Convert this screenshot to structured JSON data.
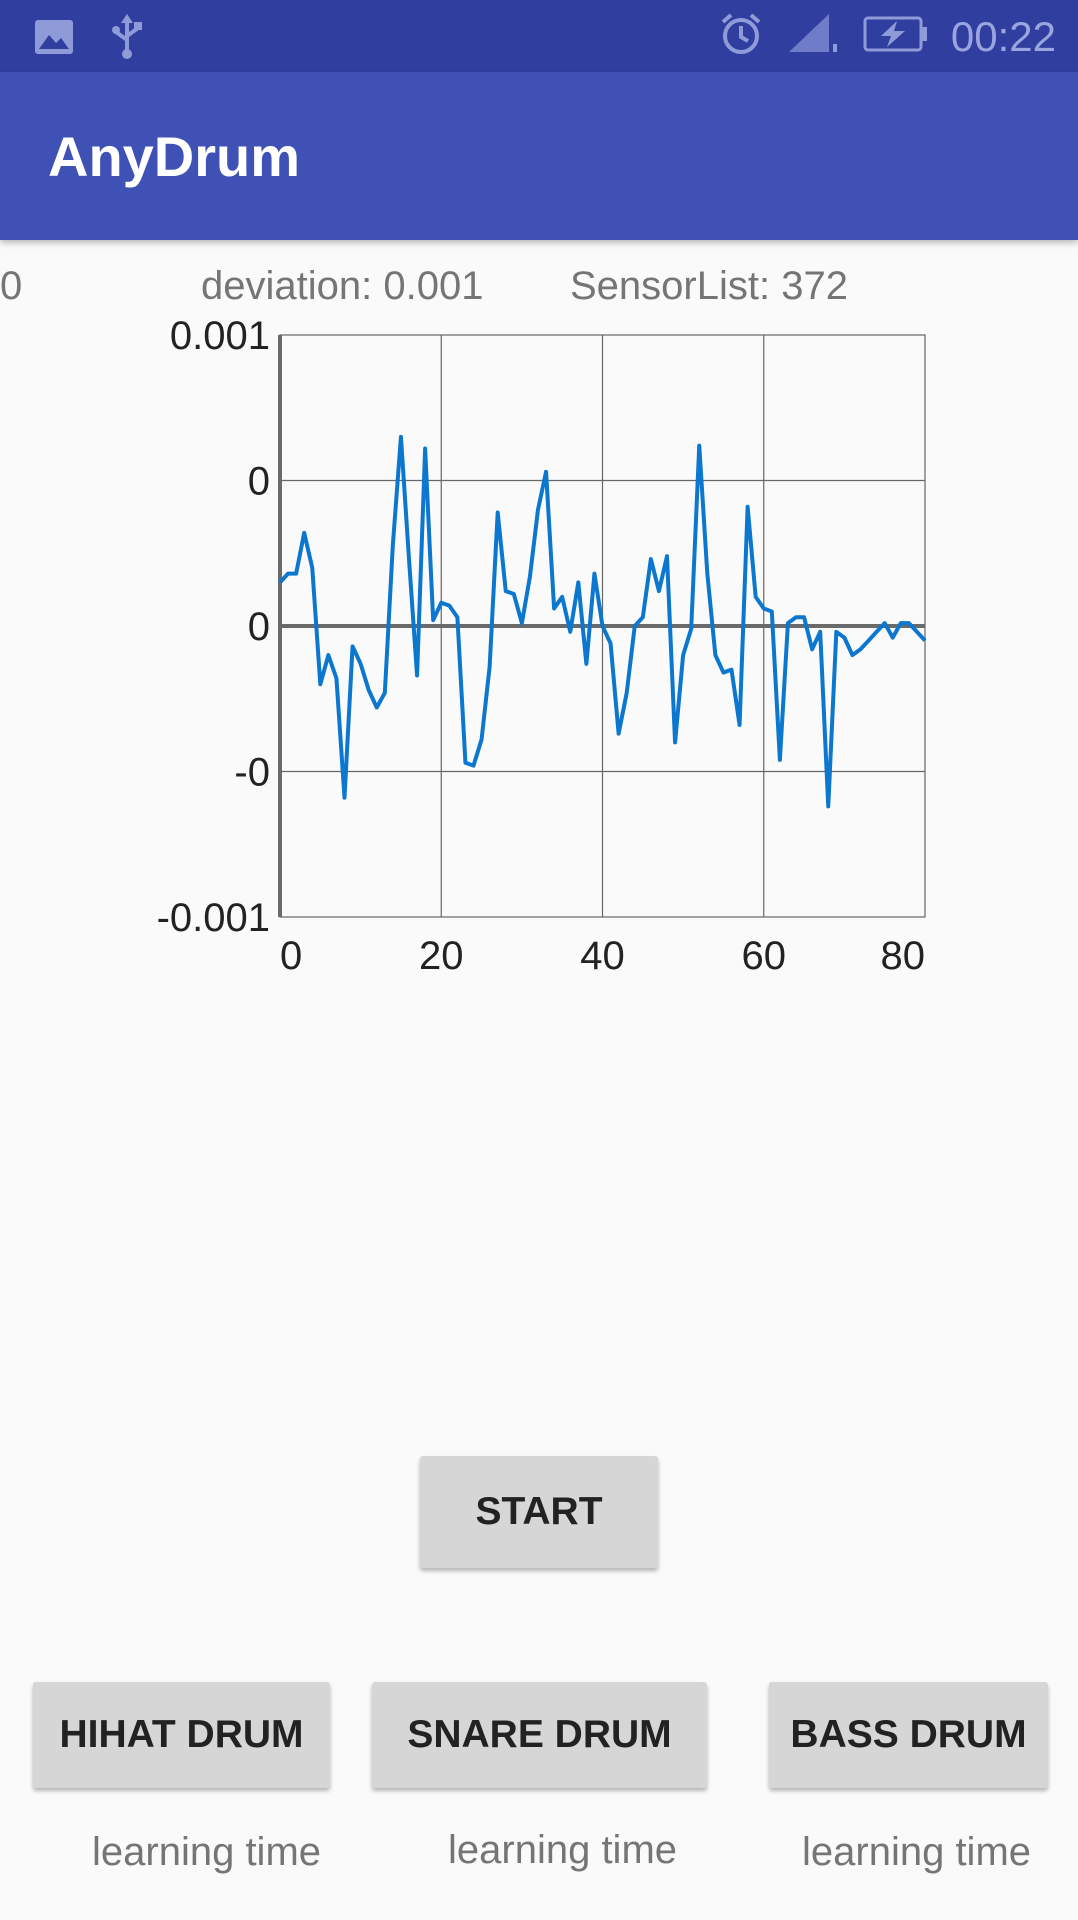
{
  "status_bar": {
    "time": "00:22",
    "icons": [
      "image-icon",
      "usb-icon",
      "alarm-icon",
      "signal-icon",
      "battery-charging-icon"
    ]
  },
  "app_bar": {
    "title": "AnyDrum"
  },
  "info": {
    "left_value": "0",
    "deviation": "deviation: 0.001",
    "sensor_list": "SensorList: 372"
  },
  "chart_data": {
    "type": "line",
    "xlim": [
      0,
      80
    ],
    "ylim": [
      -0.001,
      0.001
    ],
    "x_ticks": [
      "0",
      "20",
      "40",
      "60",
      "80"
    ],
    "y_ticks": [
      "0.001",
      "0",
      "0",
      "-0",
      "-0.001"
    ],
    "grid": true,
    "line_color": "#0b77cf",
    "series": [
      {
        "x": [
          0,
          1,
          2,
          3,
          4,
          5,
          6,
          7,
          8,
          9,
          10,
          11,
          12,
          13,
          14,
          15,
          16,
          17,
          18,
          19,
          20,
          21,
          22,
          23,
          24,
          25,
          26,
          27,
          28,
          29,
          30,
          31,
          32,
          33,
          34,
          35,
          36,
          37,
          38,
          39,
          40,
          41,
          42,
          43,
          44,
          45,
          46,
          47,
          48,
          49,
          50,
          51,
          52,
          53,
          54,
          55,
          56,
          57,
          58,
          59,
          60,
          61,
          62,
          63,
          64,
          65,
          66,
          67,
          68,
          69,
          70,
          71,
          72,
          73,
          74,
          75,
          76,
          77,
          78,
          79,
          80
        ],
        "values": [
          0.00015,
          0.00018,
          0.00018,
          0.00032,
          0.0002,
          -0.0002,
          -0.0001,
          -0.00018,
          -0.00059,
          -7e-05,
          -0.00013,
          -0.00022,
          -0.00028,
          -0.00023,
          0.00028,
          0.00065,
          0.00023,
          -0.00017,
          0.00061,
          2e-05,
          8e-05,
          7e-05,
          3e-05,
          -0.00047,
          -0.00048,
          -0.00039,
          -0.00014,
          0.00039,
          0.00012,
          0.00011,
          1e-05,
          0.00017,
          0.0004,
          0.00053,
          6e-05,
          0.0001,
          -2e-05,
          0.00015,
          -0.00013,
          0.00018,
          0,
          -6e-05,
          -0.00037,
          -0.00023,
          0,
          3e-05,
          0.00023,
          0.00012,
          0.00024,
          -0.0004,
          -0.0001,
          -1e-05,
          0.00062,
          0.00018,
          -0.0001,
          -0.00016,
          -0.00015,
          -0.00034,
          0.00041,
          0.0001,
          6e-05,
          5e-05,
          -0.00046,
          1e-05,
          3e-05,
          3e-05,
          -8e-05,
          -2e-05,
          -0.00062,
          -2e-05,
          -4e-05,
          -0.0001,
          -8e-05,
          -5e-05,
          -2e-05,
          1e-05,
          -4e-05,
          1e-05,
          1e-05,
          -2e-05,
          -5e-05
        ]
      }
    ]
  },
  "buttons": {
    "start": "START",
    "hihat": "HIHAT DRUM",
    "snare": "SNARE DRUM",
    "bass": "BASS DRUM"
  },
  "labels": {
    "hihat_learning": "learning time",
    "snare_learning": "learning time",
    "bass_learning": "learning time"
  }
}
